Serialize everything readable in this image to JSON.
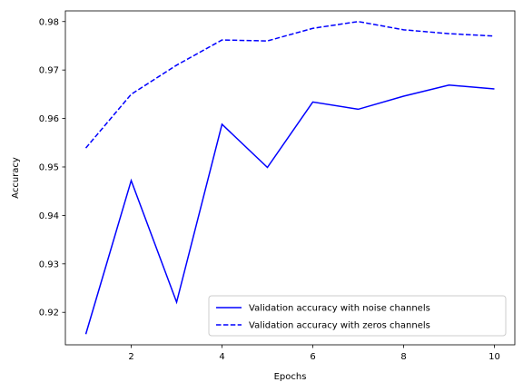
{
  "chart_data": {
    "type": "line",
    "title": "",
    "xlabel": "Epochs",
    "ylabel": "Accuracy",
    "x": [
      1,
      2,
      3,
      4,
      5,
      6,
      7,
      8,
      9,
      10
    ],
    "xlim": [
      0.55,
      10.45
    ],
    "ylim": [
      0.9133,
      0.9822
    ],
    "xticks": [
      2,
      4,
      6,
      8,
      10
    ],
    "yticks": [
      0.92,
      0.93,
      0.94,
      0.95,
      0.96,
      0.97,
      0.98
    ],
    "grid": false,
    "legend_position": "lower-right",
    "series": [
      {
        "name": "Validation accuracy with noise channels",
        "values": [
          0.9155,
          0.9472,
          0.9221,
          0.9588,
          0.9499,
          0.9634,
          0.9619,
          0.9646,
          0.9669,
          0.9661
        ],
        "color": "#0000ff",
        "style": "solid"
      },
      {
        "name": "Validation accuracy with zeros channels",
        "values": [
          0.9539,
          0.965,
          0.971,
          0.9762,
          0.976,
          0.9786,
          0.98,
          0.9783,
          0.9775,
          0.977
        ],
        "color": "#0000ff",
        "style": "dashed"
      }
    ]
  }
}
